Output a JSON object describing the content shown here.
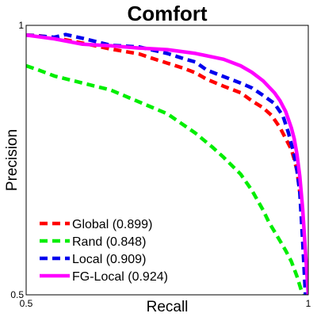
{
  "chart_data": {
    "type": "line",
    "title": "Comfort",
    "xlabel": "Recall",
    "ylabel": "Precision",
    "xlim": [
      0.5,
      1
    ],
    "ylim": [
      0.5,
      1
    ],
    "xticks": [
      "0.5",
      "1"
    ],
    "yticks": [
      "0.5",
      "1"
    ],
    "grid": false,
    "legend_position": "bottom-left",
    "series": [
      {
        "name": "Global (0.899)",
        "color": "#ff0000",
        "dash": "dashed",
        "x": [
          0.5,
          0.52,
          0.55,
          0.6,
          0.65,
          0.7,
          0.72,
          0.75,
          0.78,
          0.8,
          0.82,
          0.85,
          0.88,
          0.9,
          0.92,
          0.935,
          0.95,
          0.96,
          0.97,
          0.975,
          0.98,
          0.985
        ],
        "y": [
          0.982,
          0.981,
          0.977,
          0.967,
          0.956,
          0.947,
          0.94,
          0.93,
          0.92,
          0.912,
          0.9,
          0.887,
          0.875,
          0.86,
          0.847,
          0.833,
          0.81,
          0.79,
          0.77,
          0.752,
          0.73,
          0.69
        ]
      },
      {
        "name": "Rand (0.848)",
        "color": "#00ee00",
        "dash": "dashed",
        "x": [
          0.5,
          0.52,
          0.55,
          0.6,
          0.65,
          0.7,
          0.75,
          0.8,
          0.83,
          0.85,
          0.88,
          0.9,
          0.92,
          0.93,
          0.95,
          0.96,
          0.97,
          0.98,
          0.99
        ],
        "y": [
          0.925,
          0.918,
          0.906,
          0.893,
          0.88,
          0.858,
          0.836,
          0.8,
          0.774,
          0.755,
          0.724,
          0.694,
          0.657,
          0.635,
          0.6,
          0.582,
          0.562,
          0.534,
          0.5
        ]
      },
      {
        "name": "Local (0.909)",
        "color": "#0000ee",
        "dash": "dashed",
        "x": [
          0.5,
          0.55,
          0.57,
          0.6,
          0.65,
          0.7,
          0.75,
          0.78,
          0.8,
          0.82,
          0.85,
          0.88,
          0.9,
          0.92,
          0.94,
          0.955,
          0.965,
          0.97,
          0.975,
          0.98,
          0.985,
          0.99,
          0.995
        ],
        "y": [
          0.982,
          0.978,
          0.983,
          0.976,
          0.963,
          0.96,
          0.948,
          0.938,
          0.932,
          0.917,
          0.905,
          0.893,
          0.884,
          0.87,
          0.855,
          0.832,
          0.8,
          0.78,
          0.76,
          0.73,
          0.69,
          0.6,
          0.5
        ]
      },
      {
        "name": "FG-Local (0.924)",
        "color": "#ff00ff",
        "dash": "solid",
        "x": [
          0.5,
          0.55,
          0.6,
          0.65,
          0.7,
          0.75,
          0.8,
          0.85,
          0.88,
          0.9,
          0.92,
          0.94,
          0.95,
          0.96,
          0.97,
          0.975,
          0.98,
          0.985,
          0.99,
          0.995,
          1.0
        ],
        "y": [
          0.982,
          0.975,
          0.965,
          0.962,
          0.958,
          0.955,
          0.948,
          0.937,
          0.925,
          0.913,
          0.897,
          0.875,
          0.86,
          0.84,
          0.81,
          0.79,
          0.76,
          0.72,
          0.66,
          0.58,
          0.5
        ]
      }
    ]
  }
}
